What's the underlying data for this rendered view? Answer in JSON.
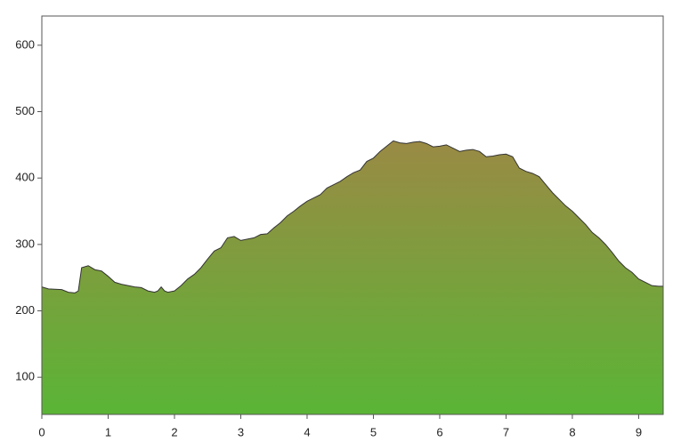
{
  "chart_data": {
    "type": "area",
    "x": [
      0,
      0.1,
      0.3,
      0.4,
      0.5,
      0.55,
      0.6,
      0.7,
      0.8,
      0.9,
      1.0,
      1.1,
      1.2,
      1.3,
      1.4,
      1.5,
      1.6,
      1.7,
      1.75,
      1.8,
      1.85,
      1.9,
      2.0,
      2.1,
      2.2,
      2.3,
      2.4,
      2.5,
      2.6,
      2.7,
      2.8,
      2.9,
      3.0,
      3.1,
      3.2,
      3.3,
      3.4,
      3.5,
      3.6,
      3.7,
      3.8,
      3.9,
      4.0,
      4.1,
      4.2,
      4.3,
      4.4,
      4.5,
      4.6,
      4.7,
      4.8,
      4.9,
      5.0,
      5.1,
      5.2,
      5.3,
      5.4,
      5.5,
      5.6,
      5.7,
      5.8,
      5.9,
      6.0,
      6.1,
      6.2,
      6.3,
      6.4,
      6.5,
      6.6,
      6.7,
      6.8,
      6.9,
      7.0,
      7.1,
      7.2,
      7.3,
      7.4,
      7.5,
      7.6,
      7.7,
      7.8,
      7.9,
      8.0,
      8.1,
      8.2,
      8.3,
      8.4,
      8.5,
      8.6,
      8.7,
      8.8,
      8.9,
      9.0,
      9.1,
      9.2,
      9.3,
      9.37
    ],
    "y": [
      236,
      233,
      232,
      228,
      227,
      230,
      265,
      268,
      262,
      260,
      252,
      243,
      240,
      238,
      236,
      235,
      230,
      228,
      230,
      236,
      230,
      228,
      230,
      238,
      248,
      255,
      265,
      278,
      290,
      295,
      310,
      312,
      306,
      308,
      310,
      315,
      316,
      325,
      333,
      343,
      350,
      358,
      365,
      370,
      375,
      385,
      390,
      395,
      402,
      408,
      412,
      425,
      430,
      440,
      448,
      456,
      453,
      452,
      454,
      455,
      452,
      447,
      448,
      450,
      445,
      440,
      442,
      443,
      440,
      432,
      433,
      435,
      436,
      432,
      415,
      410,
      407,
      402,
      390,
      378,
      368,
      358,
      350,
      340,
      330,
      318,
      310,
      300,
      288,
      275,
      265,
      258,
      248,
      243,
      238,
      237,
      237
    ],
    "xlim": [
      0,
      9.37
    ],
    "ylim": [
      44,
      644
    ],
    "xticks": [
      0,
      1,
      2,
      3,
      4,
      5,
      6,
      7,
      8,
      9
    ],
    "yticks": [
      100,
      200,
      300,
      400,
      500,
      600
    ],
    "gradient": [
      "#9a8a44",
      "#5ab536"
    ],
    "line_color": "#333333"
  }
}
